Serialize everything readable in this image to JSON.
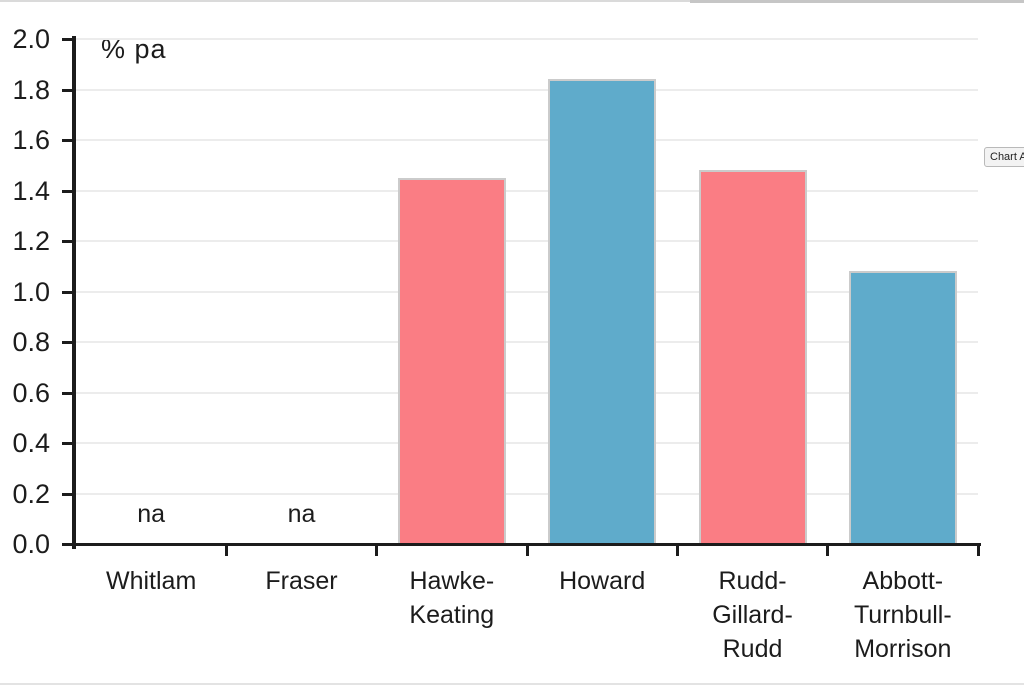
{
  "chart_data": {
    "type": "bar",
    "title": "",
    "ylabel": "% pa",
    "xlabel": "",
    "ylim": [
      0,
      2.0
    ],
    "ytick_step": 0.2,
    "grid": true,
    "legend": false,
    "categories": [
      "Whitlam",
      "Fraser",
      "Hawke-\nKeating",
      "Howard",
      "Rudd-\nGillard-\nRudd",
      "Abbott-\nTurnbull-\nMorrison"
    ],
    "values": [
      null,
      null,
      1.45,
      1.84,
      1.48,
      1.08
    ],
    "na_label": "na",
    "bar_colors": [
      null,
      null,
      "#FA7D84",
      "#5FABCB",
      "#FA7D84",
      "#5FABCB"
    ],
    "colors": {
      "red_bar": "#FA7D84",
      "blue_bar": "#5FABCB",
      "bar_border": "#CBCBCB",
      "axis": "#1C1C1C",
      "gridline": "#ECECEC",
      "text": "#1C1C1C"
    }
  },
  "tooltip": {
    "label": "Chart Area"
  }
}
